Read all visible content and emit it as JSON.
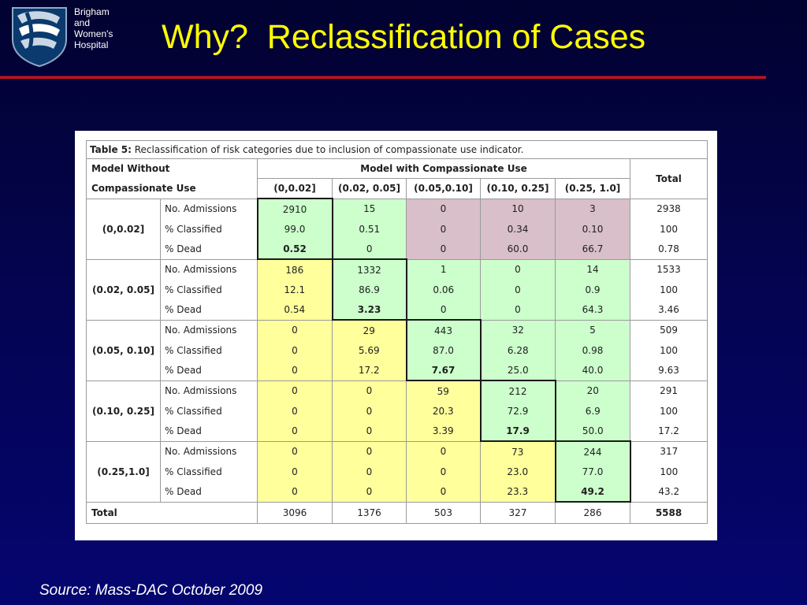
{
  "hospital": {
    "line1": "Brigham",
    "line2": "and",
    "line3": "Women's",
    "line4": "Hospital"
  },
  "slide_title": "Why?  Reclassification of Cases",
  "source": "Source:   Mass-DAC October 2009",
  "table": {
    "caption_prefix": "Table 5:",
    "caption": "Reclassification of risk categories due to inclusion of compassionate use indicator.",
    "row_header_line1": "Model Without",
    "row_header_line2": "Compassionate Use",
    "col_group_header": "Model with Compassionate Use",
    "total_header": "Total",
    "columns": [
      "(0,0.02]",
      "(0.02, 0.05]",
      "(0.05,0.10]",
      "(0.10, 0.25]",
      "(0.25, 1.0]"
    ],
    "groups": [
      {
        "label": "(0,0.02]",
        "rows": [
          {
            "label": "No. Admissions",
            "values": [
              "2910",
              "15",
              "0",
              "10",
              "3"
            ],
            "total": "2938"
          },
          {
            "label": "% Classified",
            "values": [
              "99.0",
              "0.51",
              "0",
              "0.34",
              "0.10"
            ],
            "total": "100"
          },
          {
            "label": "% Dead",
            "values": [
              "0.52",
              "0",
              "0",
              "60.0",
              "66.7"
            ],
            "total": "0.78"
          }
        ]
      },
      {
        "label": "(0.02, 0.05]",
        "rows": [
          {
            "label": "No. Admissions",
            "values": [
              "186",
              "1332",
              "1",
              "0",
              "14"
            ],
            "total": "1533"
          },
          {
            "label": "% Classified",
            "values": [
              "12.1",
              "86.9",
              "0.06",
              "0",
              "0.9"
            ],
            "total": "100"
          },
          {
            "label": "% Dead",
            "values": [
              "0.54",
              "3.23",
              "0",
              "0",
              "64.3"
            ],
            "total": "3.46"
          }
        ]
      },
      {
        "label": "(0.05, 0.10]",
        "rows": [
          {
            "label": "No. Admissions",
            "values": [
              "0",
              "29",
              "443",
              "32",
              "5"
            ],
            "total": "509"
          },
          {
            "label": "% Classified",
            "values": [
              "0",
              "5.69",
              "87.0",
              "6.28",
              "0.98"
            ],
            "total": "100"
          },
          {
            "label": "% Dead",
            "values": [
              "0",
              "17.2",
              "7.67",
              "25.0",
              "40.0"
            ],
            "total": "9.63"
          }
        ]
      },
      {
        "label": "(0.10, 0.25]",
        "rows": [
          {
            "label": "No. Admissions",
            "values": [
              "0",
              "0",
              "59",
              "212",
              "20"
            ],
            "total": "291"
          },
          {
            "label": "% Classified",
            "values": [
              "0",
              "0",
              "20.3",
              "72.9",
              "6.9"
            ],
            "total": "100"
          },
          {
            "label": "% Dead",
            "values": [
              "0",
              "0",
              "3.39",
              "17.9",
              "50.0"
            ],
            "total": "17.2"
          }
        ]
      },
      {
        "label": "(0.25,1.0]",
        "rows": [
          {
            "label": "No. Admissions",
            "values": [
              "0",
              "0",
              "0",
              "73",
              "244"
            ],
            "total": "317"
          },
          {
            "label": "% Classified",
            "values": [
              "0",
              "0",
              "0",
              "23.0",
              "77.0"
            ],
            "total": "100"
          },
          {
            "label": "% Dead",
            "values": [
              "0",
              "0",
              "0",
              "23.3",
              "49.2"
            ],
            "total": "43.2"
          }
        ]
      }
    ],
    "total_row_label": "Total",
    "column_totals": [
      "3096",
      "1376",
      "503",
      "327",
      "286"
    ],
    "grand_total": "5588",
    "cell_colors": [
      [
        "green",
        "green",
        "mauve",
        "mauve",
        "mauve"
      ],
      [
        "yellow",
        "green",
        "green",
        "green",
        "green"
      ],
      [
        "yellow",
        "yellow",
        "green",
        "green",
        "green"
      ],
      [
        "yellow",
        "yellow",
        "yellow",
        "green",
        "green"
      ],
      [
        "yellow",
        "yellow",
        "yellow",
        "yellow",
        "green"
      ]
    ]
  },
  "colors": {
    "title": "#ffff00",
    "rule": "#c8101e",
    "yellow": "#ffff9c",
    "green": "#ccffcc",
    "mauve": "#d9bfc9",
    "background": "#030356"
  }
}
